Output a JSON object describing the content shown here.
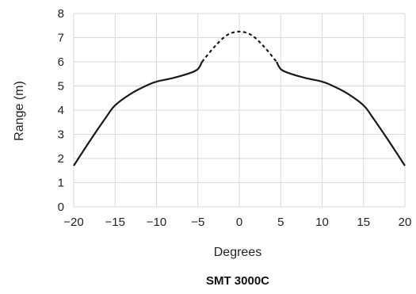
{
  "chart_data": {
    "type": "line",
    "title": "SMT 3000C",
    "xlabel": "Degrees",
    "ylabel": "Range (m)",
    "xlim": [
      -20,
      20
    ],
    "ylim": [
      0,
      8
    ],
    "xticks": [
      -20,
      -15,
      -10,
      -5,
      0,
      5,
      10,
      15,
      20
    ],
    "xtick_labels": [
      "−20",
      "−15",
      "−10",
      "−5",
      "0",
      "5",
      "10",
      "15",
      "20"
    ],
    "yticks": [
      0,
      1,
      2,
      3,
      4,
      5,
      6,
      7,
      8
    ],
    "ytick_labels": [
      "0",
      "1",
      "2",
      "3",
      "4",
      "5",
      "6",
      "7",
      "8"
    ],
    "grid": true,
    "line_color": "#1a1a1a",
    "grid_color": "#d9d9d9",
    "series": [
      {
        "style": "solid",
        "points": [
          [
            -20,
            1.7
          ],
          [
            -18,
            2.75
          ],
          [
            -16,
            3.75
          ],
          [
            -15,
            4.2
          ],
          [
            -13,
            4.7
          ],
          [
            -11,
            5.05
          ],
          [
            -10,
            5.18
          ],
          [
            -8,
            5.33
          ],
          [
            -6,
            5.53
          ],
          [
            -5,
            5.7
          ],
          [
            -4.5,
            6.0
          ]
        ]
      },
      {
        "style": "dashed",
        "points": [
          [
            -4.5,
            6.0
          ],
          [
            -3,
            6.62
          ],
          [
            -1.5,
            7.1
          ],
          [
            0,
            7.25
          ],
          [
            1.5,
            7.1
          ],
          [
            3,
            6.62
          ],
          [
            4.5,
            6.0
          ]
        ]
      },
      {
        "style": "solid",
        "points": [
          [
            4.5,
            6.0
          ],
          [
            5,
            5.7
          ],
          [
            6,
            5.53
          ],
          [
            8,
            5.33
          ],
          [
            10,
            5.18
          ],
          [
            11,
            5.05
          ],
          [
            13,
            4.7
          ],
          [
            15,
            4.2
          ],
          [
            16,
            3.75
          ],
          [
            18,
            2.75
          ],
          [
            20,
            1.7
          ]
        ]
      }
    ]
  }
}
